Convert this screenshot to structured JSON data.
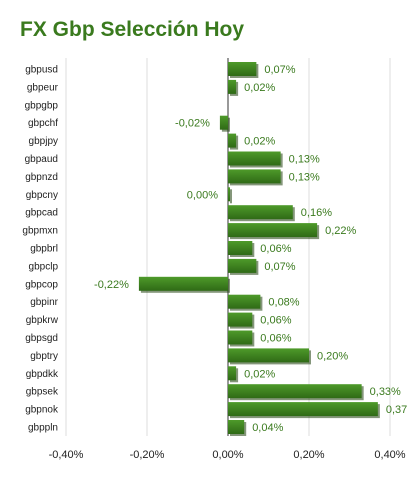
{
  "chart_data": {
    "type": "bar",
    "orientation": "horizontal",
    "title": "FX Gbp Selección Hoy",
    "categories": [
      "gbpusd",
      "gbpeur",
      "gbpgbp",
      "gbpchf",
      "gbpjpy",
      "gbpaud",
      "gbpnzd",
      "gbpcny",
      "gbpcad",
      "gbpmxn",
      "gbpbrl",
      "gbpclp",
      "gbpcop",
      "gbpinr",
      "gbpkrw",
      "gbpsgd",
      "gbptry",
      "gbpdkk",
      "gbpsek",
      "gbpnok",
      "gbppln"
    ],
    "values": [
      0.07,
      0.02,
      null,
      -0.02,
      0.02,
      0.13,
      0.13,
      0.0,
      0.16,
      0.22,
      0.06,
      0.07,
      -0.22,
      0.08,
      0.06,
      0.06,
      0.2,
      0.02,
      0.33,
      0.37,
      0.04
    ],
    "value_labels": [
      "0,07%",
      "0,02%",
      "",
      "-0,02%",
      "0,02%",
      "0,13%",
      "0,13%",
      "0,00%",
      "0,16%",
      "0,22%",
      "0,06%",
      "0,07%",
      "-0,22%",
      "0,08%",
      "0,06%",
      "0,06%",
      "0,20%",
      "0,02%",
      "0,33%",
      "0,37",
      "0,04%"
    ],
    "xlim": [
      -0.4,
      0.4
    ],
    "xticks": [
      -0.4,
      -0.2,
      0.0,
      0.2,
      0.4
    ],
    "xtick_labels": [
      "-0,40%",
      "-0,20%",
      "0,00%",
      "0,20%",
      "0,40%"
    ],
    "grid": "vertical",
    "bar_color": "#3a7a1e",
    "label_color": "#3a7a1e"
  }
}
